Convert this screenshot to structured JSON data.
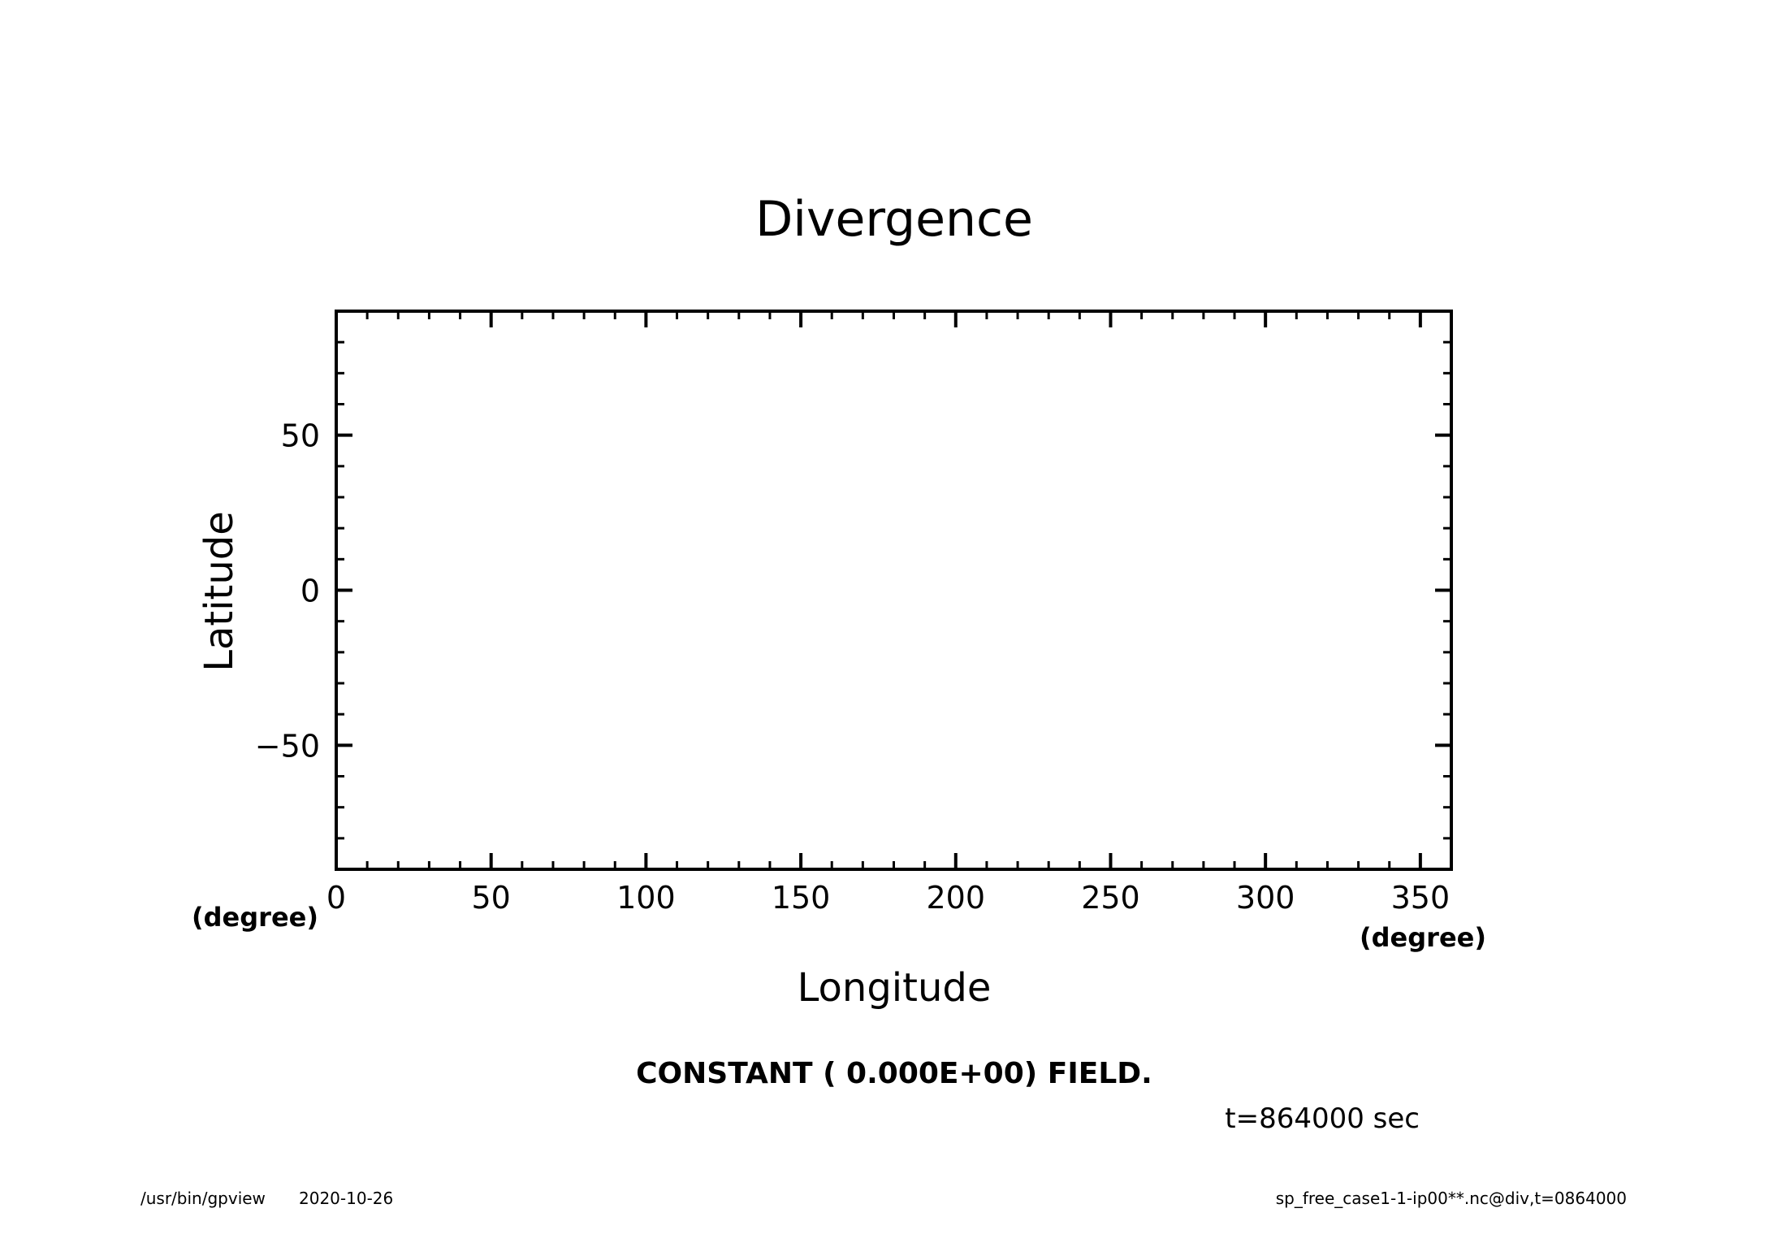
{
  "chart_data": {
    "type": "heatmap",
    "title": "Divergence",
    "xlabel": "Longitude",
    "ylabel": "Latitude",
    "x_unit": "(degree)",
    "y_unit": "(degree)",
    "xlim": [
      0,
      360
    ],
    "ylim": [
      -90,
      90
    ],
    "x_ticks": [
      0,
      50,
      100,
      150,
      200,
      250,
      300,
      350
    ],
    "y_ticks": [
      -50,
      0,
      50
    ],
    "x_tick_labels": [
      "0",
      "50",
      "100",
      "150",
      "200",
      "250",
      "300",
      "350"
    ],
    "y_tick_labels": [
      "−50",
      "0",
      "50"
    ],
    "x_minor_step": 10,
    "y_minor_step": 10,
    "grid": false,
    "field_value": 0.0,
    "message": "CONSTANT ( 0.000E+00) FIELD.",
    "time_label": "t=864000 sec"
  },
  "footer": {
    "left_program": "/usr/bin/gpview",
    "left_date": "2020-10-26",
    "right": "sp_free_case1-1-ip00**.nc@div,t=0864000"
  },
  "colors": {
    "ink": "#000000",
    "background": "#ffffff"
  }
}
